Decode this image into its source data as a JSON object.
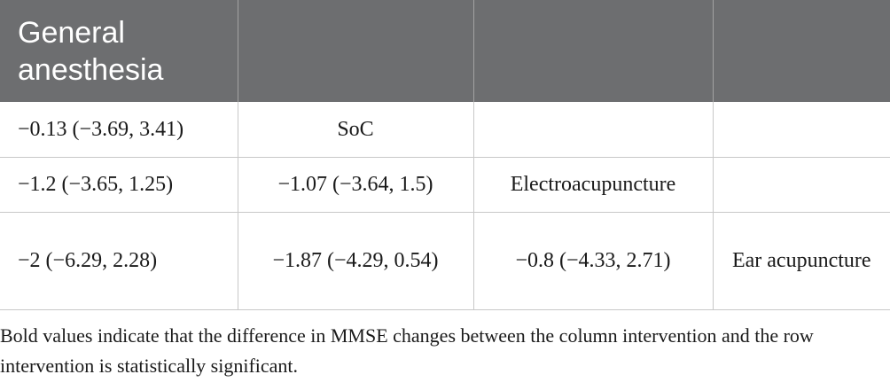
{
  "header": {
    "col1": "General anesthesia",
    "col2": "",
    "col3": "",
    "col4": ""
  },
  "rows": [
    [
      "−0.13 (−3.69, 3.41)",
      "SoC",
      "",
      ""
    ],
    [
      "−1.2 (−3.65, 1.25)",
      "−1.07 (−3.64, 1.5)",
      "Electroacupuncture",
      ""
    ],
    [
      "−2 (−6.29, 2.28)",
      "−1.87 (−4.29, 0.54)",
      "−0.8 (−4.33, 2.71)",
      "Ear acupuncture"
    ]
  ],
  "footnote": "Bold values indicate that the difference in MMSE changes between the column intervention and the row intervention is statistically significant.",
  "colors": {
    "header_bg": "#6d6e70",
    "header_text": "#ffffff",
    "grid": "#c8c8c8"
  }
}
